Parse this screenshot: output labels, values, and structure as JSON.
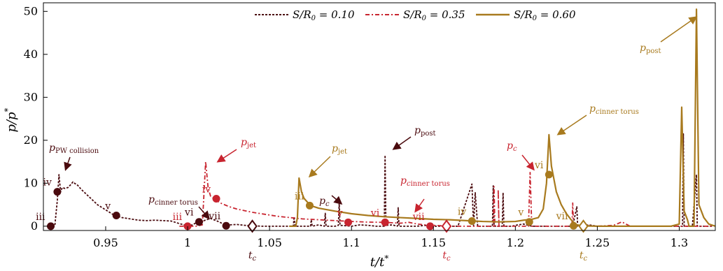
{
  "chart_data": {
    "type": "line",
    "xlabel": "t/t*",
    "ylabel": "p/p*",
    "xlim": [
      0.912,
      1.322
    ],
    "ylim": [
      -1,
      52
    ],
    "xticks": [
      0.95,
      1,
      1.05,
      1.1,
      1.15,
      1.2,
      1.25,
      1.3
    ],
    "xtick_labels": [
      "0.95",
      "1",
      "1.05",
      "1.1",
      "1.15",
      "1.2",
      "1.25",
      "1.3"
    ],
    "yticks": [
      0,
      10,
      20,
      30,
      40,
      50
    ],
    "ytick_labels": [
      "0",
      "10",
      "20",
      "30",
      "40",
      "50"
    ],
    "legend_position": "top-center",
    "series": [
      {
        "name": "S/R0 = 0.10",
        "color": "#4a0a0e",
        "style": "dashed",
        "points": [
          [
            0.915,
            0
          ],
          [
            0.919,
            0.2
          ],
          [
            0.9205,
            6
          ],
          [
            0.9215,
            12
          ],
          [
            0.9225,
            8
          ],
          [
            0.9235,
            9
          ],
          [
            0.925,
            8.8
          ],
          [
            0.927,
            9
          ],
          [
            0.929,
            9.8
          ],
          [
            0.93,
            10.3
          ],
          [
            0.931,
            10
          ],
          [
            0.933,
            9.5
          ],
          [
            0.935,
            8.6
          ],
          [
            0.94,
            6.8
          ],
          [
            0.945,
            5
          ],
          [
            0.95,
            3.8
          ],
          [
            0.955,
            2.6
          ],
          [
            0.96,
            2
          ],
          [
            0.965,
            1.7
          ],
          [
            0.97,
            1.4
          ],
          [
            0.975,
            1.3
          ],
          [
            0.98,
            1.4
          ],
          [
            0.985,
            1.3
          ],
          [
            0.99,
            1.2
          ],
          [
            0.995,
            0.6
          ],
          [
            1.0,
            0.1
          ],
          [
            1.003,
            0.3
          ],
          [
            1.006,
            1
          ],
          [
            1.01,
            1.3
          ],
          [
            1.014,
            1.8
          ],
          [
            1.018,
            1.2
          ],
          [
            1.022,
            0.5
          ],
          [
            1.025,
            0.3
          ],
          [
            1.03,
            0.4
          ],
          [
            1.035,
            0.2
          ],
          [
            1.04,
            0.1
          ],
          [
            1.045,
            0
          ],
          [
            1.055,
            0
          ],
          [
            1.0645,
            0
          ],
          [
            1.065,
            2.2
          ],
          [
            1.0655,
            0
          ],
          [
            1.07,
            0
          ],
          [
            1.075,
            0
          ],
          [
            1.0755,
            1.5
          ],
          [
            1.076,
            0
          ],
          [
            1.08,
            0.3
          ],
          [
            1.0835,
            0
          ],
          [
            1.084,
            3
          ],
          [
            1.0845,
            0
          ],
          [
            1.09,
            0
          ],
          [
            1.092,
            0.2
          ],
          [
            1.0925,
            5.3
          ],
          [
            1.093,
            0.2
          ],
          [
            1.1,
            0
          ],
          [
            1.105,
            0.3
          ],
          [
            1.11,
            0.2
          ],
          [
            1.115,
            0
          ],
          [
            1.12,
            0
          ],
          [
            1.1205,
            16.5
          ],
          [
            1.121,
            0.2
          ],
          [
            1.125,
            0.3
          ],
          [
            1.128,
            0
          ],
          [
            1.1285,
            4.3
          ],
          [
            1.129,
            0
          ],
          [
            1.135,
            0
          ],
          [
            1.14,
            0
          ],
          [
            1.145,
            0.2
          ],
          [
            1.15,
            0
          ],
          [
            1.16,
            0
          ],
          [
            1.165,
            0
          ],
          [
            1.1735,
            9.8
          ],
          [
            1.1745,
            0
          ],
          [
            1.1755,
            7.8
          ],
          [
            1.177,
            0
          ],
          [
            1.18,
            0
          ],
          [
            1.186,
            0
          ],
          [
            1.1865,
            9.4
          ],
          [
            1.187,
            0
          ],
          [
            1.192,
            0
          ],
          [
            1.1925,
            7.8
          ],
          [
            1.193,
            0
          ],
          [
            1.198,
            0
          ],
          [
            1.2,
            0.2
          ],
          [
            1.205,
            0.5
          ],
          [
            1.21,
            0
          ],
          [
            1.215,
            0
          ],
          [
            1.22,
            0
          ],
          [
            1.225,
            0
          ],
          [
            1.23,
            0
          ],
          [
            1.235,
            0
          ],
          [
            1.2375,
            4.5
          ],
          [
            1.238,
            0
          ],
          [
            1.245,
            0.3
          ],
          [
            1.25,
            0
          ],
          [
            1.26,
            0
          ],
          [
            1.27,
            0
          ],
          [
            1.28,
            0
          ],
          [
            1.29,
            0
          ],
          [
            1.3,
            0
          ],
          [
            1.302,
            0
          ],
          [
            1.3025,
            21.5
          ],
          [
            1.303,
            0
          ],
          [
            1.308,
            0
          ],
          [
            1.3105,
            12
          ],
          [
            1.311,
            0
          ],
          [
            1.32,
            0
          ]
        ]
      },
      {
        "name": "S/R0 = 0.35",
        "color": "#c8242f",
        "style": "dashdot",
        "points": [
          [
            0.995,
            0
          ],
          [
            1.005,
            0
          ],
          [
            1.009,
            0.3
          ],
          [
            1.011,
            15
          ],
          [
            1.0125,
            9
          ],
          [
            1.014,
            7
          ],
          [
            1.016,
            6.4
          ],
          [
            1.02,
            5.4
          ],
          [
            1.025,
            4.6
          ],
          [
            1.03,
            4
          ],
          [
            1.035,
            3.6
          ],
          [
            1.04,
            3.2
          ],
          [
            1.045,
            2.9
          ],
          [
            1.05,
            2.6
          ],
          [
            1.055,
            2.3
          ],
          [
            1.06,
            2.1
          ],
          [
            1.065,
            1.9
          ],
          [
            1.07,
            1.7
          ],
          [
            1.075,
            1.6
          ],
          [
            1.08,
            1.5
          ],
          [
            1.085,
            1.4
          ],
          [
            1.09,
            1.3
          ],
          [
            1.1,
            1.1
          ],
          [
            1.11,
            0.95
          ],
          [
            1.12,
            0.9
          ],
          [
            1.13,
            0.7
          ],
          [
            1.135,
            0.9
          ],
          [
            1.14,
            0.5
          ],
          [
            1.145,
            0.3
          ],
          [
            1.15,
            0.2
          ],
          [
            1.155,
            0.1
          ],
          [
            1.16,
            0
          ],
          [
            1.17,
            0
          ],
          [
            1.18,
            0
          ],
          [
            1.1865,
            0
          ],
          [
            1.187,
            9.2
          ],
          [
            1.1875,
            0
          ],
          [
            1.19,
            0
          ],
          [
            1.1895,
            8.5
          ],
          [
            1.19,
            0
          ],
          [
            1.195,
            0
          ],
          [
            1.2,
            0
          ],
          [
            1.205,
            0
          ],
          [
            1.208,
            0
          ],
          [
            1.209,
            12.5
          ],
          [
            1.21,
            0
          ],
          [
            1.215,
            0
          ],
          [
            1.22,
            0
          ],
          [
            1.225,
            0
          ],
          [
            1.23,
            0
          ],
          [
            1.2345,
            0
          ],
          [
            1.235,
            5.4
          ],
          [
            1.2355,
            0
          ],
          [
            1.24,
            0.2
          ],
          [
            1.25,
            0
          ],
          [
            1.26,
            0.2
          ],
          [
            1.265,
            1
          ],
          [
            1.27,
            0
          ],
          [
            1.28,
            0
          ],
          [
            1.32,
            0
          ]
        ]
      },
      {
        "name": "S/R0 = 0.60",
        "color": "#a87a1e",
        "style": "solid",
        "points": [
          [
            1.062,
            0
          ],
          [
            1.066,
            0
          ],
          [
            1.067,
            2
          ],
          [
            1.068,
            11.2
          ],
          [
            1.0695,
            8
          ],
          [
            1.071,
            6.5
          ],
          [
            1.075,
            4.8
          ],
          [
            1.08,
            4.2
          ],
          [
            1.09,
            3.5
          ],
          [
            1.1,
            2.9
          ],
          [
            1.11,
            2.5
          ],
          [
            1.12,
            2.2
          ],
          [
            1.13,
            2
          ],
          [
            1.14,
            1.8
          ],
          [
            1.15,
            1.6
          ],
          [
            1.16,
            1.5
          ],
          [
            1.17,
            1.3
          ],
          [
            1.175,
            1.2
          ],
          [
            1.18,
            1.1
          ],
          [
            1.19,
            1
          ],
          [
            1.2,
            1.1
          ],
          [
            1.205,
            1.4
          ],
          [
            1.21,
            1.6
          ],
          [
            1.214,
            2
          ],
          [
            1.217,
            4
          ],
          [
            1.219,
            10
          ],
          [
            1.2205,
            21.3
          ],
          [
            1.222,
            14
          ],
          [
            1.225,
            8
          ],
          [
            1.228,
            5
          ],
          [
            1.231,
            3
          ],
          [
            1.234,
            1.5
          ],
          [
            1.237,
            0.4
          ],
          [
            1.24,
            0.1
          ],
          [
            1.25,
            0
          ],
          [
            1.26,
            0
          ],
          [
            1.27,
            0
          ],
          [
            1.28,
            0
          ],
          [
            1.29,
            0
          ],
          [
            1.295,
            0
          ],
          [
            1.3,
            0.5
          ],
          [
            1.3015,
            27.7
          ],
          [
            1.303,
            3.5
          ],
          [
            1.305,
            1.5
          ],
          [
            1.306,
            0
          ],
          [
            1.309,
            0
          ],
          [
            1.3105,
            50.5
          ],
          [
            1.312,
            5
          ],
          [
            1.315,
            2
          ],
          [
            1.318,
            0.5
          ],
          [
            1.322,
            0
          ]
        ]
      }
    ],
    "markers": [
      {
        "series": 0,
        "stage": "iii",
        "x": 0.9165,
        "y": 0
      },
      {
        "series": 0,
        "stage": "iv",
        "x": 0.9205,
        "y": 8
      },
      {
        "series": 0,
        "stage": "v",
        "x": 0.9565,
        "y": 2.5
      },
      {
        "series": 0,
        "stage": "vi",
        "x": 1.007,
        "y": 1
      },
      {
        "series": 0,
        "stage": "vii",
        "x": 1.0235,
        "y": 0.1
      },
      {
        "series": 1,
        "stage": "iii",
        "x": 1.0,
        "y": 0
      },
      {
        "series": 1,
        "stage": "iv",
        "x": 1.0175,
        "y": 6.4
      },
      {
        "series": 1,
        "stage": "v",
        "x": 1.098,
        "y": 0.9
      },
      {
        "series": 1,
        "stage": "vi",
        "x": 1.1205,
        "y": 0.9
      },
      {
        "series": 1,
        "stage": "vii",
        "x": 1.148,
        "y": 0
      },
      {
        "series": 2,
        "stage": "iii",
        "x": 1.0745,
        "y": 4.8
      },
      {
        "series": 2,
        "stage": "iv",
        "x": 1.1735,
        "y": 1.2
      },
      {
        "series": 2,
        "stage": "v",
        "x": 1.2085,
        "y": 1.0
      },
      {
        "series": 2,
        "stage": "vi",
        "x": 1.2205,
        "y": 12
      },
      {
        "series": 2,
        "stage": "vii",
        "x": 1.2355,
        "y": 0.1
      }
    ],
    "critical_times": [
      {
        "series": 0,
        "x": 1.0395,
        "label": "t_c"
      },
      {
        "series": 1,
        "x": 1.158,
        "label": "t_c"
      },
      {
        "series": 2,
        "x": 1.2415,
        "label": "t_c"
      }
    ],
    "annotations": [
      {
        "text": "p_PW collision",
        "color": "#4a0a0e"
      },
      {
        "text": "p_c inner torus",
        "color": "#4a0a0e"
      },
      {
        "text": "p_post",
        "color": "#4a0a0e"
      },
      {
        "text": "p_c",
        "color": "#4a0a0e"
      },
      {
        "text": "p_jet",
        "color": "#c8242f"
      },
      {
        "text": "p_c inner torus",
        "color": "#c8242f"
      },
      {
        "text": "p_c",
        "color": "#c8242f"
      },
      {
        "text": "p_jet",
        "color": "#a87a1e"
      },
      {
        "text": "p_c inner torus",
        "color": "#a87a1e"
      },
      {
        "text": "p_post",
        "color": "#a87a1e"
      }
    ]
  }
}
